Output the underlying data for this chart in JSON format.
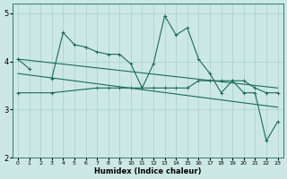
{
  "xlabel": "Humidex (Indice chaleur)",
  "x": [
    0,
    1,
    2,
    3,
    4,
    5,
    6,
    7,
    8,
    9,
    10,
    11,
    12,
    13,
    14,
    15,
    16,
    17,
    18,
    19,
    20,
    21,
    22,
    23
  ],
  "line1": [
    4.05,
    3.85,
    null,
    3.65,
    4.6,
    4.35,
    4.3,
    4.2,
    4.15,
    4.15,
    3.95,
    3.45,
    3.95,
    4.95,
    4.55,
    4.7,
    4.05,
    3.75,
    3.35,
    3.6,
    3.35,
    3.35,
    2.35,
    2.75
  ],
  "line2_x": [
    0,
    3,
    7,
    8,
    9,
    10,
    11,
    12,
    13,
    14,
    15,
    16,
    17,
    18,
    19,
    20,
    21,
    22,
    23
  ],
  "line2_y": [
    3.35,
    3.35,
    3.45,
    3.45,
    3.45,
    3.45,
    3.45,
    3.45,
    3.45,
    3.45,
    3.45,
    3.6,
    3.6,
    3.6,
    3.6,
    3.6,
    3.45,
    3.35,
    3.35
  ],
  "line3_x": [
    0,
    23
  ],
  "line3_y": [
    4.05,
    3.45
  ],
  "line4_x": [
    0,
    23
  ],
  "line4_y": [
    3.75,
    3.05
  ],
  "color": "#1a6b5a",
  "bg_color": "#cce8e4",
  "grid_color": "#a8cfc9",
  "ylim": [
    2.0,
    5.2
  ],
  "xlim": [
    -0.5,
    23.5
  ],
  "yticks": [
    2,
    3,
    4,
    5
  ],
  "xticks": [
    0,
    1,
    2,
    3,
    4,
    5,
    6,
    7,
    8,
    9,
    10,
    11,
    12,
    13,
    14,
    15,
    16,
    17,
    18,
    19,
    20,
    21,
    22,
    23
  ]
}
